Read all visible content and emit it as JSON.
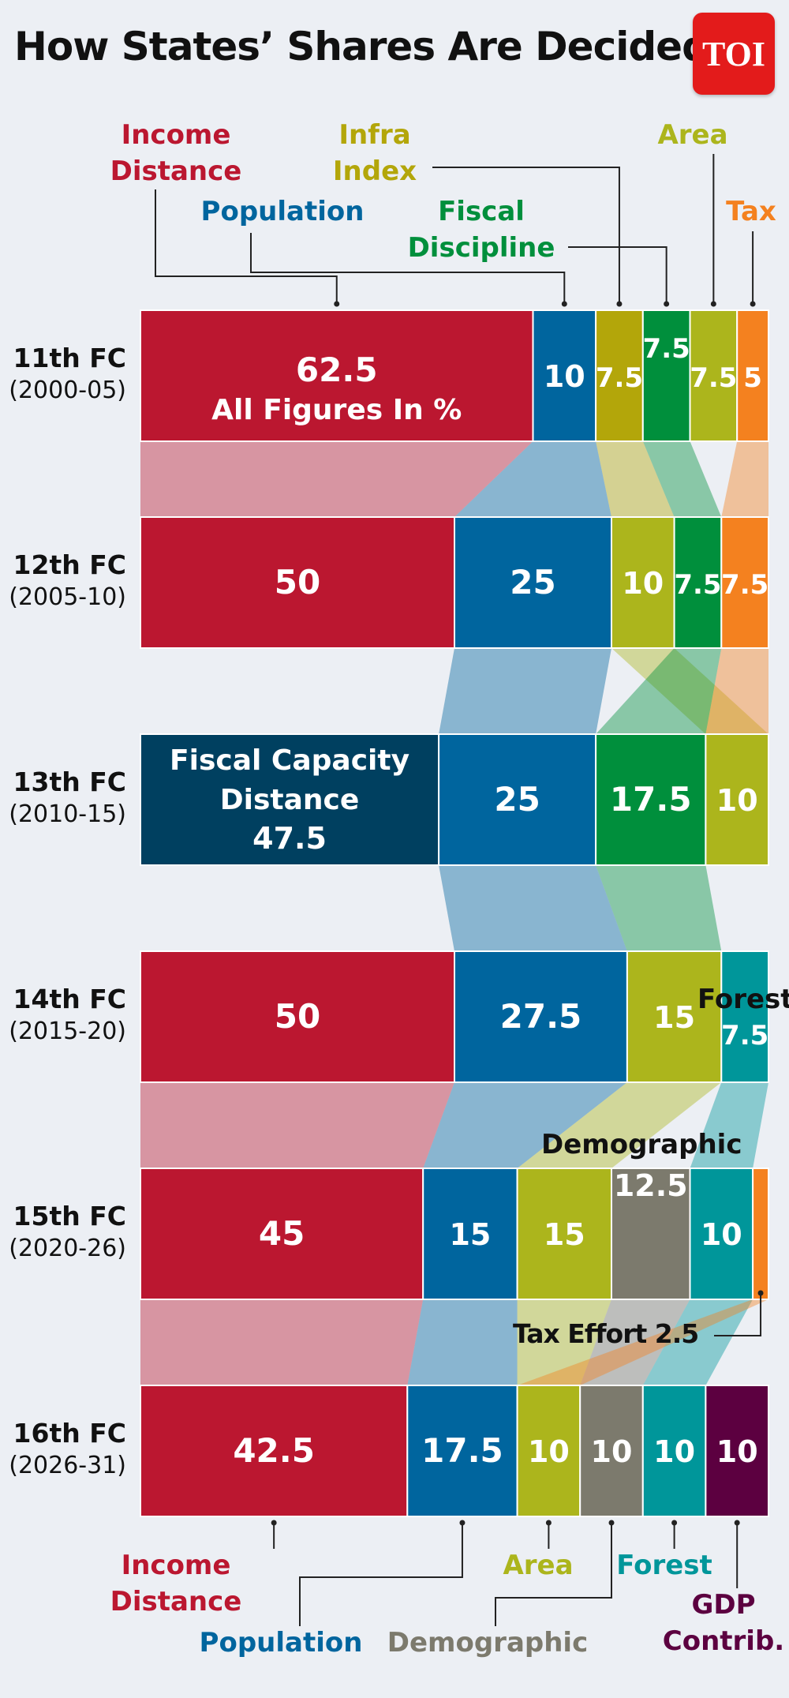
{
  "title": "How States’ Shares Are Decided",
  "logo_text": "TOI",
  "colors": {
    "income": "#bb1730",
    "population": "#00659e",
    "infra": "#b3a60a",
    "fiscal": "#008f3c",
    "area": "#acb51c",
    "tax": "#f4811f",
    "fiscalcap": "#004060",
    "forest": "#00969a",
    "demographic": "#7c7a6d",
    "gdp": "#5c0040"
  },
  "legend": {
    "income_top": "Income Distance",
    "infra_top": "Infra Index",
    "area_top": "Area",
    "population_top": "Population",
    "fiscal_top": "Fiscal Discipline",
    "tax_top": "Tax",
    "demographic_mid": "Demographic",
    "tax_effort_mid": "Tax Effort 2.5",
    "forest_mid": "Forest",
    "income_bottom": "Income Distance",
    "area_bottom": "Area",
    "forest_bottom": "Forest",
    "population_bottom": "Population",
    "demographic_bottom": "Demographic",
    "gdp_bottom": "GDP Contrib."
  },
  "chart_data": {
    "type": "bar",
    "title": "How States’ Shares Are Decided",
    "note": "All Figures In %",
    "categories": [
      "11th FC (2000-05)",
      "12th FC (2005-10)",
      "13th FC (2010-15)",
      "14th FC (2015-20)",
      "15th FC (2020-26)",
      "16th FC (2026-31)"
    ],
    "rows": [
      {
        "fc": "11th FC",
        "years": "(2000-05)",
        "segments": [
          {
            "key": "income",
            "name": "Income Distance",
            "value": 62.5,
            "label": "62.5"
          },
          {
            "key": "population",
            "name": "Population",
            "value": 10,
            "label": "10"
          },
          {
            "key": "infra",
            "name": "Infra Index",
            "value": 7.5,
            "label": "7.5"
          },
          {
            "key": "fiscal",
            "name": "Fiscal Discipline",
            "value": 7.5,
            "label": "7.5"
          },
          {
            "key": "area",
            "name": "Area",
            "value": 7.5,
            "label": "7.5"
          },
          {
            "key": "tax",
            "name": "Tax",
            "value": 5,
            "label": "5"
          }
        ]
      },
      {
        "fc": "12th FC",
        "years": "(2005-10)",
        "segments": [
          {
            "key": "income",
            "name": "Income Distance",
            "value": 50,
            "label": "50"
          },
          {
            "key": "population",
            "name": "Population",
            "value": 25,
            "label": "25"
          },
          {
            "key": "area",
            "name": "Area",
            "value": 10,
            "label": "10"
          },
          {
            "key": "fiscal",
            "name": "Fiscal Discipline",
            "value": 7.5,
            "label": "7.5"
          },
          {
            "key": "tax",
            "name": "Tax",
            "value": 7.5,
            "label": "7.5"
          }
        ]
      },
      {
        "fc": "13th FC",
        "years": "(2010-15)",
        "segments": [
          {
            "key": "fiscalcap",
            "name": "Fiscal Capacity Distance",
            "value": 47.5,
            "label": "47.5",
            "title_line1": "Fiscal Capacity",
            "title_line2": "Distance"
          },
          {
            "key": "population",
            "name": "Population",
            "value": 25,
            "label": "25"
          },
          {
            "key": "fiscal",
            "name": "Fiscal Discipline",
            "value": 17.5,
            "label": "17.5"
          },
          {
            "key": "area",
            "name": "Area",
            "value": 10,
            "label": "10"
          }
        ]
      },
      {
        "fc": "14th FC",
        "years": "(2015-20)",
        "segments": [
          {
            "key": "income",
            "name": "Income Distance",
            "value": 50,
            "label": "50"
          },
          {
            "key": "population",
            "name": "Population",
            "value": 27.5,
            "label": "27.5"
          },
          {
            "key": "area",
            "name": "Area",
            "value": 15,
            "label": "15"
          },
          {
            "key": "forest",
            "name": "Forest",
            "value": 7.5,
            "label": "7.5"
          }
        ]
      },
      {
        "fc": "15th FC",
        "years": "(2020-26)",
        "segments": [
          {
            "key": "income",
            "name": "Income Distance",
            "value": 45,
            "label": "45"
          },
          {
            "key": "population",
            "name": "Population",
            "value": 15,
            "label": "15"
          },
          {
            "key": "area",
            "name": "Area",
            "value": 15,
            "label": "15"
          },
          {
            "key": "demographic",
            "name": "Demographic",
            "value": 12.5,
            "label": "12.5"
          },
          {
            "key": "forest",
            "name": "Forest",
            "value": 10,
            "label": "10"
          },
          {
            "key": "tax",
            "name": "Tax Effort",
            "value": 2.5,
            "label": ""
          }
        ]
      },
      {
        "fc": "16th FC",
        "years": "(2026-31)",
        "segments": [
          {
            "key": "income",
            "name": "Income Distance",
            "value": 42.5,
            "label": "42.5"
          },
          {
            "key": "population",
            "name": "Population",
            "value": 17.5,
            "label": "17.5"
          },
          {
            "key": "area",
            "name": "Area",
            "value": 10,
            "label": "10"
          },
          {
            "key": "demographic",
            "name": "Demographic",
            "value": 10,
            "label": "10"
          },
          {
            "key": "forest",
            "name": "Forest",
            "value": 10,
            "label": "10"
          },
          {
            "key": "gdp",
            "name": "GDP Contribution",
            "value": 10,
            "label": "10"
          }
        ]
      }
    ],
    "links": [
      [
        "income",
        "income"
      ],
      [
        "population",
        "population"
      ],
      [
        "infra",
        "area"
      ],
      [
        "fiscal",
        "fiscal"
      ],
      [
        "area",
        "area"
      ],
      [
        "tax",
        "tax"
      ],
      [
        "population",
        "population"
      ],
      [
        "area",
        "area"
      ],
      [
        "fiscal",
        "fiscal"
      ],
      [
        "tax",
        "area"
      ],
      [
        "population",
        "population"
      ],
      [
        "area",
        "area"
      ],
      [
        "fiscal",
        "area"
      ],
      [
        "income",
        "income"
      ],
      [
        "population",
        "population"
      ],
      [
        "area",
        "area"
      ],
      [
        "forest",
        "forest"
      ],
      [
        "income",
        "income"
      ],
      [
        "population",
        "population"
      ],
      [
        "area",
        "area"
      ],
      [
        "demographic",
        "demographic"
      ],
      [
        "forest",
        "forest"
      ]
    ]
  }
}
